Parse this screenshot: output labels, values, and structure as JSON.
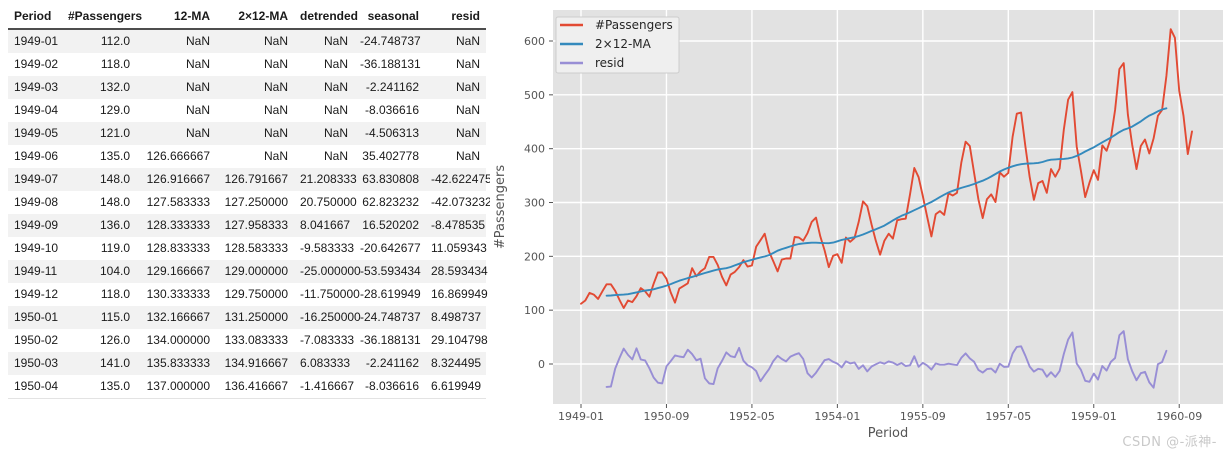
{
  "table": {
    "columns": [
      "Period",
      "#Passengers",
      "12-MA",
      "2×12-MA",
      "detrended",
      "seasonal",
      "resid"
    ],
    "rows": [
      [
        "1949-01",
        "112.0",
        "NaN",
        "NaN",
        "NaN",
        "-24.748737",
        "NaN"
      ],
      [
        "1949-02",
        "118.0",
        "NaN",
        "NaN",
        "NaN",
        "-36.188131",
        "NaN"
      ],
      [
        "1949-03",
        "132.0",
        "NaN",
        "NaN",
        "NaN",
        "-2.241162",
        "NaN"
      ],
      [
        "1949-04",
        "129.0",
        "NaN",
        "NaN",
        "NaN",
        "-8.036616",
        "NaN"
      ],
      [
        "1949-05",
        "121.0",
        "NaN",
        "NaN",
        "NaN",
        "-4.506313",
        "NaN"
      ],
      [
        "1949-06",
        "135.0",
        "126.666667",
        "NaN",
        "NaN",
        "35.402778",
        "NaN"
      ],
      [
        "1949-07",
        "148.0",
        "126.916667",
        "126.791667",
        "21.208333",
        "63.830808",
        "-42.622475"
      ],
      [
        "1949-08",
        "148.0",
        "127.583333",
        "127.250000",
        "20.750000",
        "62.823232",
        "-42.073232"
      ],
      [
        "1949-09",
        "136.0",
        "128.333333",
        "127.958333",
        "8.041667",
        "16.520202",
        "-8.478535"
      ],
      [
        "1949-10",
        "119.0",
        "128.833333",
        "128.583333",
        "-9.583333",
        "-20.642677",
        "11.059343"
      ],
      [
        "1949-11",
        "104.0",
        "129.166667",
        "129.000000",
        "-25.000000",
        "-53.593434",
        "28.593434"
      ],
      [
        "1949-12",
        "118.0",
        "130.333333",
        "129.750000",
        "-11.750000",
        "-28.619949",
        "16.869949"
      ],
      [
        "1950-01",
        "115.0",
        "132.166667",
        "131.250000",
        "-16.250000",
        "-24.748737",
        "8.498737"
      ],
      [
        "1950-02",
        "126.0",
        "134.000000",
        "133.083333",
        "-7.083333",
        "-36.188131",
        "29.104798"
      ],
      [
        "1950-03",
        "141.0",
        "135.833333",
        "134.916667",
        "6.083333",
        "-2.241162",
        "8.324495"
      ],
      [
        "1950-04",
        "135.0",
        "137.000000",
        "136.416667",
        "-1.416667",
        "-8.036616",
        "6.619949"
      ]
    ]
  },
  "chart_data": {
    "type": "line",
    "title": "",
    "xlabel": "Period",
    "ylabel": "#Passengers",
    "x_start_period": "1949-01",
    "x_end_period": "1960-12",
    "x_tick_indices": [
      0,
      20,
      40,
      60,
      80,
      100,
      120,
      140
    ],
    "x_tick_labels": [
      "1949-01",
      "1950-09",
      "1952-05",
      "1954-01",
      "1955-09",
      "1957-05",
      "1959-01",
      "1960-09"
    ],
    "y_ticks": [
      0,
      100,
      200,
      300,
      400,
      500,
      600
    ],
    "ylim": [
      -74,
      658
    ],
    "grid": true,
    "legend_position": "upper-left",
    "plot_bg": "#e2e2e2",
    "grid_color": "#ffffff",
    "tick_color": "#555555",
    "legend_bg": "#efefef",
    "legend_border": "#cccccc",
    "series": [
      {
        "name": "#Passengers",
        "color": "#E24A33",
        "values": [
          112,
          118,
          132,
          129,
          121,
          135,
          148,
          148,
          136,
          119,
          104,
          118,
          115,
          126,
          141,
          135,
          125,
          149,
          170,
          170,
          158,
          133,
          114,
          140,
          145,
          150,
          178,
          163,
          172,
          178,
          199,
          199,
          184,
          162,
          146,
          166,
          171,
          180,
          193,
          181,
          183,
          218,
          230,
          242,
          209,
          191,
          172,
          194,
          196,
          196,
          236,
          235,
          229,
          243,
          264,
          272,
          237,
          211,
          180,
          201,
          204,
          188,
          235,
          227,
          234,
          264,
          302,
          293,
          259,
          229,
          203,
          229,
          242,
          233,
          267,
          269,
          270,
          315,
          364,
          347,
          312,
          274,
          237,
          278,
          284,
          277,
          317,
          313,
          318,
          374,
          413,
          405,
          355,
          306,
          271,
          306,
          315,
          301,
          356,
          348,
          355,
          422,
          465,
          467,
          404,
          347,
          305,
          336,
          340,
          318,
          362,
          348,
          363,
          435,
          491,
          505,
          404,
          359,
          310,
          337,
          360,
          342,
          406,
          396,
          420,
          472,
          548,
          559,
          463,
          407,
          362,
          405,
          417,
          391,
          419,
          461,
          472,
          535,
          622,
          606,
          508,
          461,
          390,
          432
        ]
      },
      {
        "name": "2×12-MA",
        "color": "#348ABD",
        "derived": "centered 2x12 moving average of #Passengers (defined 1949-07 .. 1960-06)"
      },
      {
        "name": "resid",
        "color": "#988ED5",
        "derived": "#Passengers - trend - seasonal (defined 1949-07 .. 1960-06)"
      }
    ],
    "seasonal_by_month": [
      -24.748737,
      -36.188131,
      -2.241162,
      -8.036616,
      -4.506313,
      35.402778,
      63.830808,
      62.823232,
      16.520202,
      -20.642677,
      -53.593434,
      -28.619949
    ]
  },
  "watermark": {
    "text": "CSDN @-派神-"
  }
}
